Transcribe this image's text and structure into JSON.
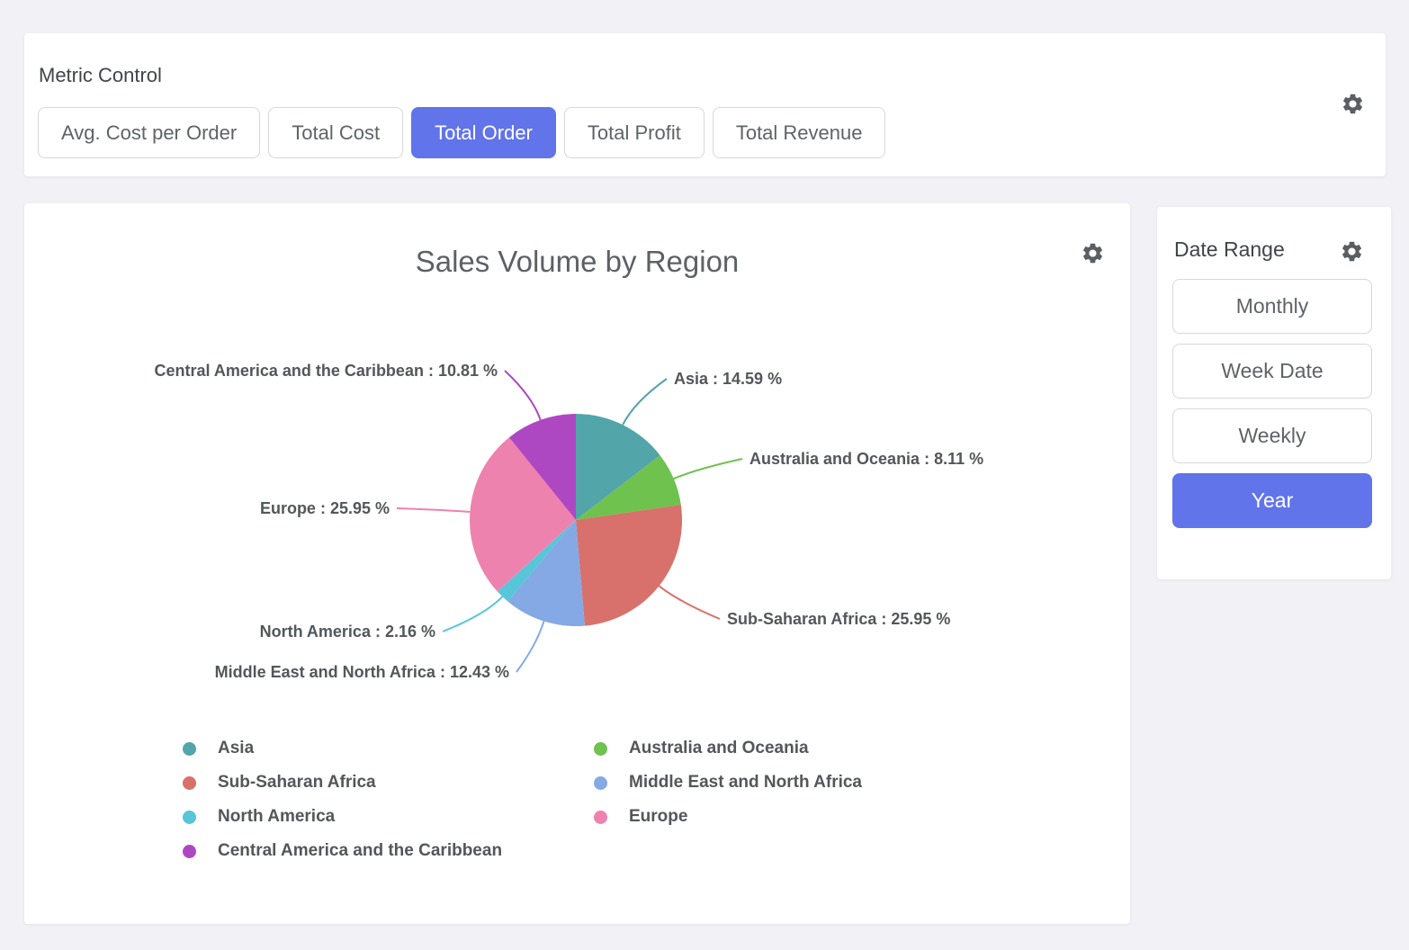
{
  "app": {
    "background_color": "#f1f1f6",
    "accent_color": "#6274e9"
  },
  "metric_control": {
    "title": "Metric Control",
    "buttons": [
      {
        "label": "Avg. Cost per Order",
        "selected": false
      },
      {
        "label": "Total Cost",
        "selected": false
      },
      {
        "label": "Total Order",
        "selected": true
      },
      {
        "label": "Total Profit",
        "selected": false
      },
      {
        "label": "Total Revenue",
        "selected": false
      }
    ]
  },
  "date_range": {
    "title": "Date Range",
    "buttons": [
      {
        "label": "Monthly",
        "selected": false
      },
      {
        "label": "Week Date",
        "selected": false
      },
      {
        "label": "Weekly",
        "selected": false
      },
      {
        "label": "Year",
        "selected": true
      }
    ]
  },
  "chart_data": {
    "type": "pie",
    "title": "Sales Volume by Region",
    "unit": "%",
    "label_format": "{name} : {value} %",
    "slices": [
      {
        "name": "Asia",
        "value": 14.59,
        "color": "#52a5a8"
      },
      {
        "name": "Australia and Oceania",
        "value": 8.11,
        "color": "#6fc24e"
      },
      {
        "name": "Sub-Saharan Africa",
        "value": 25.95,
        "color": "#d8716b"
      },
      {
        "name": "Middle East and North Africa",
        "value": 12.43,
        "color": "#84a9e4"
      },
      {
        "name": "North America",
        "value": 2.16,
        "color": "#58c5d8"
      },
      {
        "name": "Europe",
        "value": 25.95,
        "color": "#ee82ae"
      },
      {
        "name": "Central America and the Caribbean",
        "value": 10.81,
        "color": "#ae48c2"
      }
    ],
    "legend": {
      "position": "bottom",
      "columns": [
        [
          "Asia",
          "Sub-Saharan Africa",
          "North America",
          "Central America and the Caribbean"
        ],
        [
          "Australia and Oceania",
          "Middle East and North Africa",
          "Europe"
        ]
      ]
    }
  }
}
